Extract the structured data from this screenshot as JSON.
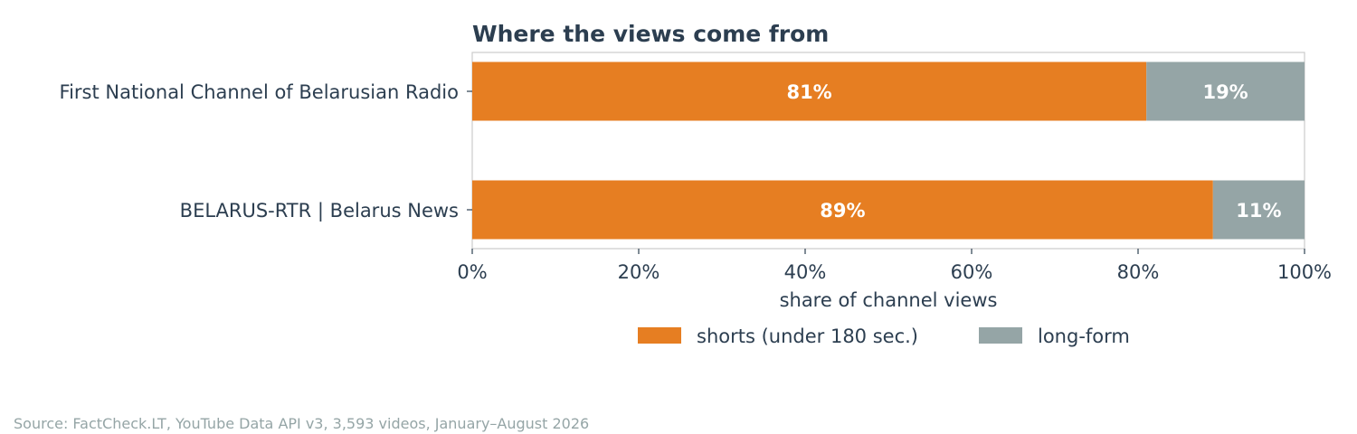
{
  "chart_data": {
    "type": "bar",
    "orientation": "horizontal",
    "stacked": true,
    "title": "Where the views come from",
    "xlabel": "share of channel views",
    "ylabel": "",
    "xlim": [
      0,
      100
    ],
    "x_ticks": [
      "0%",
      "20%",
      "40%",
      "60%",
      "80%",
      "100%"
    ],
    "categories": [
      "First National Channel of Belarusian Radio",
      "BELARUS-RTR | Belarus News"
    ],
    "series": [
      {
        "name": "shorts (under 180 sec.)",
        "values": [
          81,
          89
        ],
        "labels": [
          "81%",
          "89%"
        ],
        "color": "#e67e22"
      },
      {
        "name": "long-form",
        "values": [
          19,
          11
        ],
        "labels": [
          "19%",
          "11%"
        ],
        "color": "#95a5a6"
      }
    ],
    "legend_position": "bottom",
    "grid": false
  },
  "colors": {
    "text": "#2c3e50",
    "axis": "#cccccc",
    "source": "#95a5a6",
    "bar_label": "#ffffff"
  },
  "source_note": "Source: FactCheck.LT, YouTube Data API v3, 3,593 videos, January–August 2026"
}
